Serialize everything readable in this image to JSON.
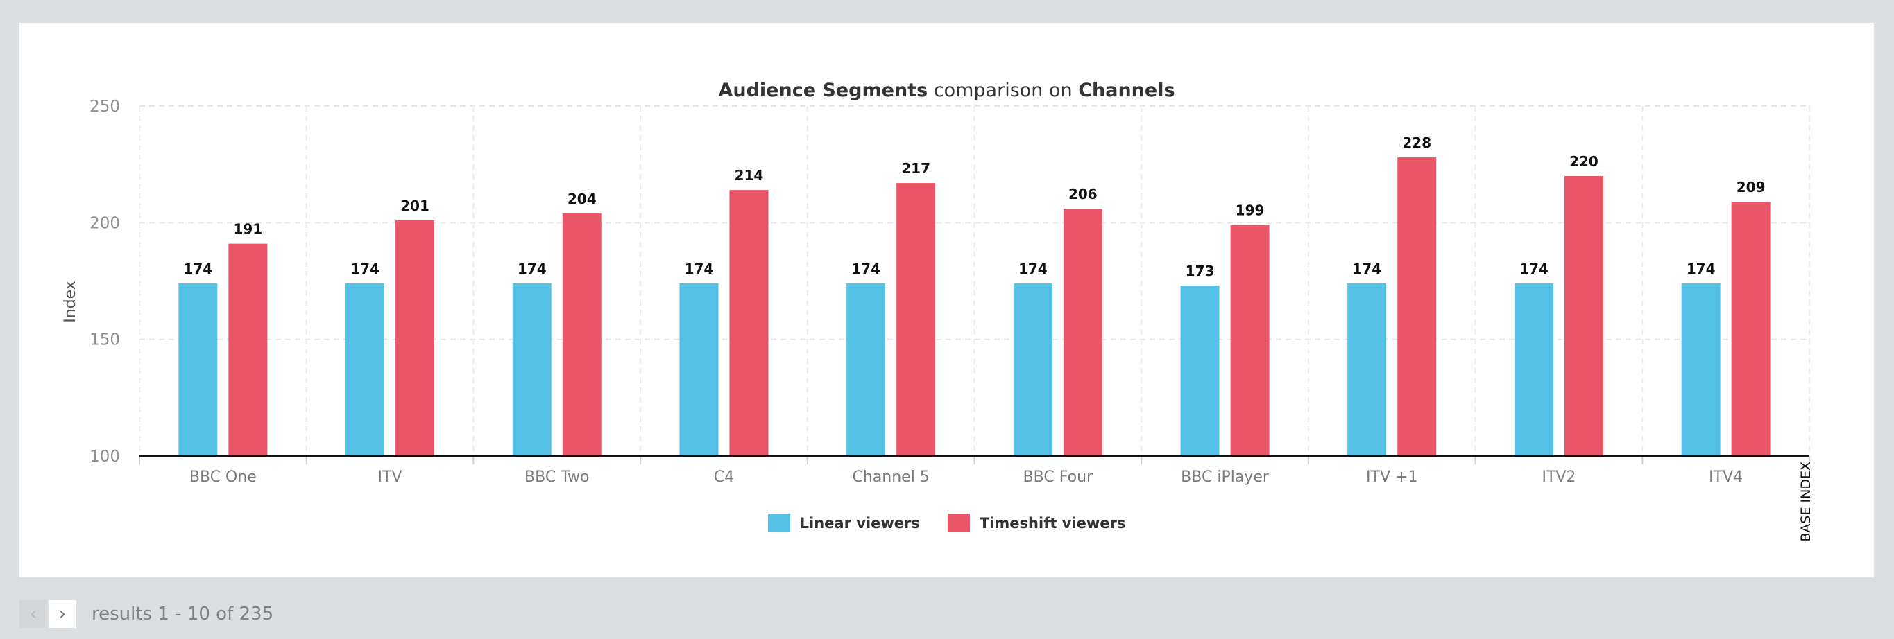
{
  "chart_data": {
    "type": "bar",
    "title_parts": [
      "Audience Segments",
      " comparison on ",
      "Channels"
    ],
    "ylabel": "Index",
    "ylim": [
      100,
      250
    ],
    "yticks": [
      100,
      150,
      200,
      250
    ],
    "categories": [
      "BBC One",
      "ITV",
      "BBC Two",
      "C4",
      "Channel 5",
      "BBC Four",
      "BBC iPlayer",
      "ITV +1",
      "ITV2",
      "ITV4"
    ],
    "series": [
      {
        "name": "Linear viewers",
        "color": "#56c1e7",
        "values": [
          174,
          174,
          174,
          174,
          174,
          174,
          173,
          174,
          174,
          174
        ]
      },
      {
        "name": "Timeshift viewers",
        "color": "#ea5567",
        "values": [
          191,
          201,
          204,
          214,
          217,
          206,
          199,
          228,
          220,
          209
        ]
      }
    ],
    "base_index_label": "BASE INDEX",
    "grid": true,
    "legend_position": "bottom-center"
  },
  "pagination": {
    "prev_icon": "chevron-left-icon",
    "next_icon": "chevron-right-icon",
    "results_text": "results 1 - 10 of 235"
  }
}
